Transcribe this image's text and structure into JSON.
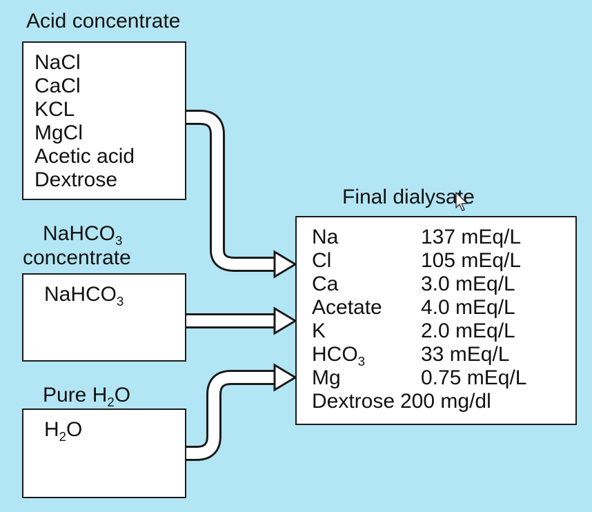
{
  "acid": {
    "title": "Acid concentrate",
    "items": [
      "NaCl",
      "CaCl",
      "KCL",
      "MgCl",
      "Acetic acid",
      "Dextrose"
    ]
  },
  "bicarb": {
    "title_main": "NaHCO",
    "title_sub": "3",
    "title_line2": "concentrate",
    "item_main": "NaHCO",
    "item_sub": "3"
  },
  "water": {
    "title_pre": "Pure H",
    "title_sub": "2",
    "title_post": "O",
    "item_pre": "H",
    "item_sub": "2",
    "item_post": "O"
  },
  "final": {
    "title": "Final dialysate",
    "rows": [
      {
        "name": "Na",
        "value": "137 mEq/L"
      },
      {
        "name": "Cl",
        "value": "105 mEq/L"
      },
      {
        "name": "Ca",
        "value": "3.0 mEq/L"
      },
      {
        "name": "Acetate",
        "value": "4.0 mEq/L"
      },
      {
        "name": "K",
        "value": "2.0 mEq/L"
      },
      {
        "name": "HCO",
        "name_sub": "3",
        "value": "33 mEq/L"
      },
      {
        "name": "Mg",
        "value": "0.75 mEq/L"
      },
      {
        "name": "Dextrose",
        "value": "200 mg/dl"
      }
    ]
  },
  "colors": {
    "background": "#b3e6f4",
    "box_fill": "#ffffff",
    "stroke": "#1a1a1a"
  },
  "icons": [
    "flow-arrow-icon",
    "mouse-cursor-icon"
  ]
}
